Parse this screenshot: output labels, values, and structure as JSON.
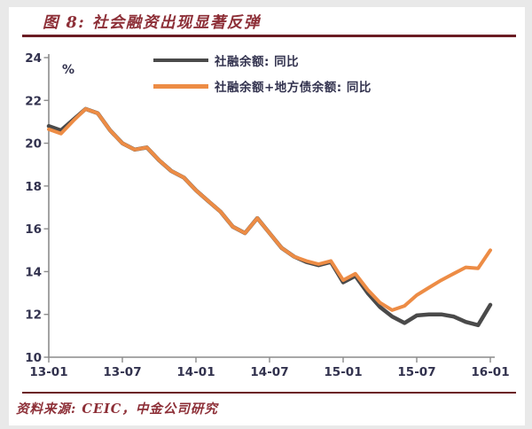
{
  "title": "图 8: 社会融资出现显著反弹",
  "source": "资料来源: CEIC，中金公司研究",
  "colors": {
    "title_maroon": "#8d2f37",
    "rule_maroon": "#6b1c23",
    "axis_gray": "#8c8c8c",
    "tick_label_dark": "#32324e",
    "series_gray": "#4a4a4a",
    "series_orange": "#ed8c45",
    "frame_gray": "#e9e9e9",
    "panel_white": "#ffffff"
  },
  "chart_data": {
    "type": "line",
    "title": "图 8: 社会融资出现显著反弹",
    "xlabel": "",
    "ylabel": "%",
    "ylim": [
      10,
      24
    ],
    "yticks": [
      10,
      12,
      14,
      16,
      18,
      20,
      22,
      24
    ],
    "grid": false,
    "legend_position": "top-center",
    "xtick_labels": [
      "13-01",
      "13-07",
      "14-01",
      "14-07",
      "15-01",
      "15-07",
      "16-01"
    ],
    "categories": [
      "13-01",
      "13-02",
      "13-03",
      "13-04",
      "13-05",
      "13-06",
      "13-07",
      "13-08",
      "13-09",
      "13-10",
      "13-11",
      "13-12",
      "14-01",
      "14-02",
      "14-03",
      "14-04",
      "14-05",
      "14-06",
      "14-07",
      "14-08",
      "14-09",
      "14-10",
      "14-11",
      "14-12",
      "15-01",
      "15-02",
      "15-03",
      "15-04",
      "15-05",
      "15-06",
      "15-07",
      "15-08",
      "15-09",
      "15-10",
      "15-11",
      "15-12",
      "16-01"
    ],
    "series": [
      {
        "name": "社融余额: 同比",
        "color": "#4a4a4a",
        "values": [
          20.8,
          20.6,
          21.1,
          21.6,
          21.4,
          20.6,
          20.0,
          19.7,
          19.8,
          19.2,
          18.7,
          18.4,
          17.8,
          17.3,
          16.8,
          16.1,
          15.8,
          16.5,
          15.8,
          15.1,
          14.7,
          14.45,
          14.3,
          14.45,
          13.5,
          13.8,
          13.0,
          12.35,
          11.9,
          11.6,
          11.95,
          12.0,
          12.0,
          11.9,
          11.65,
          11.5,
          12.45
        ]
      },
      {
        "name": "社融余额+地方债余额: 同比",
        "color": "#ed8c45",
        "values": [
          20.65,
          20.45,
          21.05,
          21.6,
          21.4,
          20.6,
          20.0,
          19.7,
          19.8,
          19.2,
          18.7,
          18.4,
          17.8,
          17.3,
          16.8,
          16.1,
          15.8,
          16.5,
          15.8,
          15.1,
          14.7,
          14.5,
          14.35,
          14.5,
          13.6,
          13.9,
          13.15,
          12.55,
          12.2,
          12.4,
          12.9,
          13.25,
          13.6,
          13.9,
          14.2,
          14.15,
          15.0
        ]
      }
    ]
  }
}
